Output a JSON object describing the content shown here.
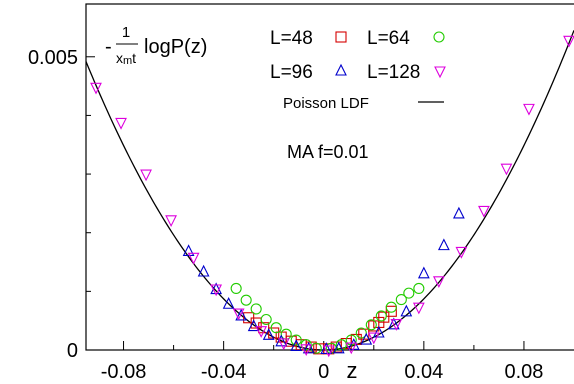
{
  "chart_data": {
    "type": "scatter",
    "title": "",
    "xlabel": "z",
    "ylabel": {
      "prefix": "-",
      "frac_num": "1",
      "frac_den_main": "x",
      "frac_den_sub": "m",
      "frac_den_tail": "t",
      "rest": "logP(z)"
    },
    "xlim": [
      -0.095,
      0.1
    ],
    "ylim": [
      0,
      0.0059
    ],
    "grid": false,
    "legend_placement": "top",
    "x_tick_labels": [
      {
        "x": -0.08,
        "label": "-0.08"
      },
      {
        "x": -0.04,
        "label": "-0.04"
      },
      {
        "x": 0,
        "label": "0"
      },
      {
        "x": 0.04,
        "label": "0.04"
      },
      {
        "x": 0.08,
        "label": "0.08"
      }
    ],
    "y_tick_labels": [
      {
        "y": 0,
        "label": "0"
      },
      {
        "y": 0.005,
        "label": "0.005"
      }
    ],
    "annotation": "MA f=0.01",
    "curve": {
      "name": "Poisson LDF",
      "color": "#000000",
      "kind": "parabola",
      "coefficient": 0.545
    },
    "series": [
      {
        "name": "L=48",
        "marker": "square",
        "color": "#d40000",
        "points": [
          [
            -0.03,
            0.00055
          ],
          [
            -0.027,
            0.00046
          ],
          [
            -0.024,
            0.00038
          ],
          [
            -0.02,
            0.00029
          ],
          [
            -0.017,
            0.00022
          ],
          [
            -0.013,
            0.00015
          ],
          [
            -0.009,
            9e-05
          ],
          [
            -0.005,
            5e-05
          ],
          [
            -0.002,
            2e-05
          ],
          [
            0.002,
            2e-05
          ],
          [
            0.005,
            5e-05
          ],
          [
            0.009,
            0.00011
          ],
          [
            0.013,
            0.00018
          ],
          [
            0.016,
            0.00027
          ],
          [
            0.02,
            0.00041
          ],
          [
            0.022,
            0.00047
          ],
          [
            0.024,
            0.00056
          ],
          [
            0.027,
            0.00066
          ]
        ]
      },
      {
        "name": "L=64",
        "marker": "circle",
        "color": "#22cc00",
        "points": [
          [
            -0.035,
            0.00105
          ],
          [
            -0.031,
            0.00085
          ],
          [
            -0.027,
            0.0007
          ],
          [
            -0.023,
            0.00052
          ],
          [
            -0.019,
            0.00038
          ],
          [
            -0.015,
            0.00027
          ],
          [
            -0.011,
            0.00017
          ],
          [
            -0.007,
            9e-05
          ],
          [
            -0.003,
            3e-05
          ],
          [
            0.003,
            3e-05
          ],
          [
            0.007,
            9e-05
          ],
          [
            0.011,
            0.00017
          ],
          [
            0.015,
            0.00029
          ],
          [
            0.019,
            0.00043
          ],
          [
            0.023,
            0.00058
          ],
          [
            0.027,
            0.00073
          ],
          [
            0.031,
            0.00086
          ],
          [
            0.034,
            0.00097
          ],
          [
            0.038,
            0.00105
          ]
        ]
      },
      {
        "name": "L=96",
        "marker": "triangle-up",
        "color": "#0000cc",
        "points": [
          [
            -0.054,
            0.00168
          ],
          [
            -0.048,
            0.00133
          ],
          [
            -0.043,
            0.00103
          ],
          [
            -0.038,
            0.00078
          ],
          [
            -0.033,
            0.00058
          ],
          [
            -0.028,
            0.0004
          ],
          [
            -0.022,
            0.00025
          ],
          [
            -0.017,
            0.00014
          ],
          [
            -0.011,
            6e-05
          ],
          [
            -0.006,
            2e-05
          ],
          [
            0.001,
            1e-05
          ],
          [
            0.006,
            2e-05
          ],
          [
            0.012,
            8e-05
          ],
          [
            0.017,
            0.00017
          ],
          [
            0.022,
            0.00029
          ],
          [
            0.028,
            0.00043
          ],
          [
            0.033,
            0.00065
          ],
          [
            0.04,
            0.0013
          ],
          [
            0.048,
            0.00178
          ],
          [
            0.054,
            0.00232
          ]
        ]
      },
      {
        "name": "L=128",
        "marker": "triangle-down",
        "color": "#dd00dd",
        "points": [
          [
            -0.091,
            0.00448
          ],
          [
            -0.081,
            0.00388
          ],
          [
            -0.071,
            0.003
          ],
          [
            -0.061,
            0.00222
          ],
          [
            -0.052,
            0.00158
          ],
          [
            -0.043,
            0.00104
          ],
          [
            -0.034,
            0.00063
          ],
          [
            -0.025,
            0.00033
          ],
          [
            -0.016,
            0.00012
          ],
          [
            -0.007,
            2e-05
          ],
          [
            0.002,
            0.0
          ],
          [
            0.011,
            5e-05
          ],
          [
            0.02,
            0.00022
          ],
          [
            0.029,
            0.00045
          ],
          [
            0.038,
            0.00073
          ],
          [
            0.046,
            0.00118
          ],
          [
            0.055,
            0.00168
          ],
          [
            0.064,
            0.00238
          ],
          [
            0.073,
            0.0031
          ],
          [
            0.082,
            0.00412
          ],
          [
            0.098,
            0.00528
          ]
        ]
      }
    ]
  }
}
